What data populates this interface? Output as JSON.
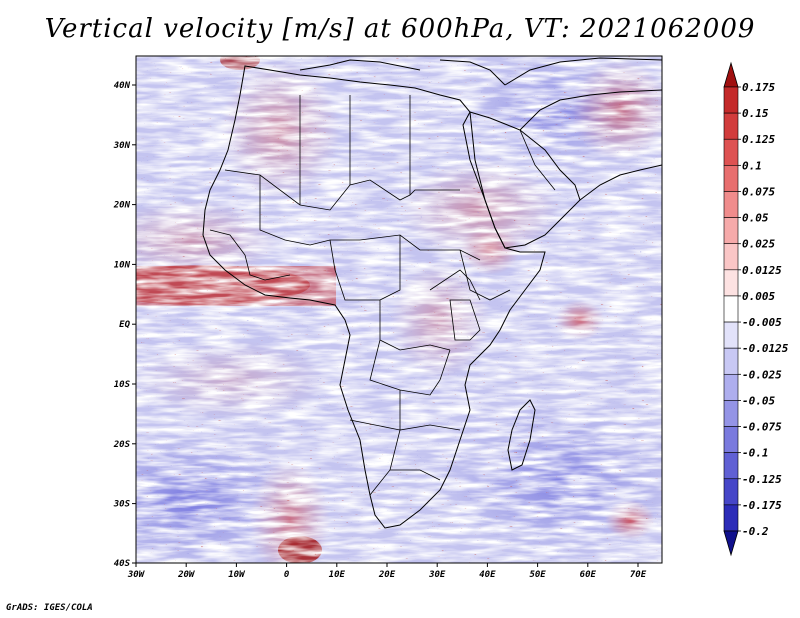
{
  "title": "Vertical velocity [m/s] at 600hPa, VT: 2021062009",
  "credit": "GrADS: IGES/COLA",
  "map": {
    "region": "Africa",
    "lat_labels": [
      "40N",
      "30N",
      "20N",
      "10N",
      "EQ",
      "10S",
      "20S",
      "30S",
      "40S"
    ],
    "lon_labels": [
      "30W",
      "20W",
      "10W",
      "0",
      "10E",
      "20E",
      "30E",
      "40E",
      "50E",
      "60E",
      "70E"
    ]
  },
  "colorbar": {
    "labels": [
      "0.175",
      "0.15",
      "0.125",
      "0.1",
      "0.075",
      "0.05",
      "0.025",
      "0.0125",
      "0.005",
      "-0.005",
      "-0.0125",
      "-0.025",
      "-0.05",
      "-0.075",
      "-0.1",
      "-0.125",
      "-0.175",
      "-0.2"
    ],
    "colors": [
      "#b81818",
      "#c42a2a",
      "#d23c3c",
      "#de5252",
      "#e86e6e",
      "#f08c8c",
      "#f6aaaa",
      "#fac6c6",
      "#fde2e2",
      "#ffffff",
      "#e2e2fa",
      "#c8c8f4",
      "#aeaeee",
      "#9494e6",
      "#7a7ade",
      "#6060d4",
      "#4646c8",
      "#2c2cb8",
      "#1818a0"
    ],
    "top_arrow_color": "#a01010",
    "bottom_arrow_color": "#10108c"
  }
}
